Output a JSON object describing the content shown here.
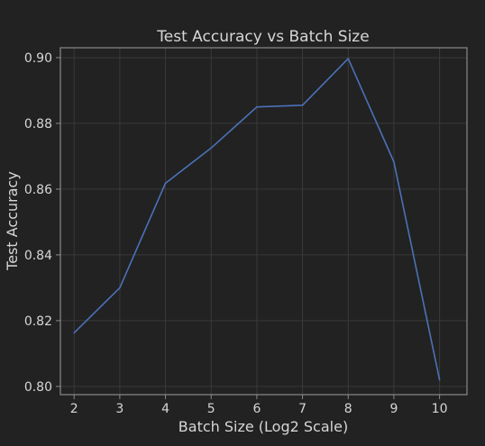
{
  "chart_data": {
    "type": "line",
    "title": "Test Accuracy vs Batch Size",
    "xlabel": "Batch Size (Log2 Scale)",
    "ylabel": "Test Accuracy",
    "x": [
      2,
      3,
      4,
      5,
      6,
      7,
      8,
      9,
      10
    ],
    "series": [
      {
        "values": [
          0.8163,
          0.83,
          0.8618,
          0.8725,
          0.885,
          0.8855,
          0.8997,
          0.8683,
          0.802
        ]
      }
    ],
    "xticks": [
      "2",
      "3",
      "4",
      "5",
      "6",
      "7",
      "8",
      "9",
      "10"
    ],
    "yticks": [
      "0.80",
      "0.82",
      "0.84",
      "0.86",
      "0.88",
      "0.90"
    ],
    "xlim": [
      1.7,
      10.6
    ],
    "ylim": [
      0.7975,
      0.903
    ],
    "grid": true,
    "colors": {
      "background": "#222222",
      "grid": "#3a3a3a",
      "frame": "#8a8a8a",
      "text": "#d6d6d6",
      "line": "#4a72b8"
    }
  }
}
